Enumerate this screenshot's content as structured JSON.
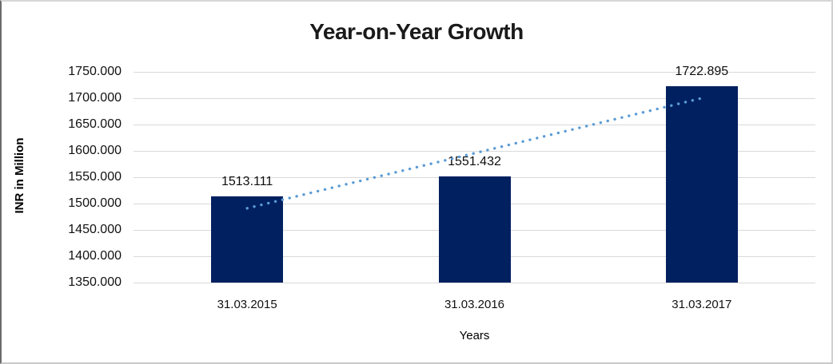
{
  "chart_data": {
    "type": "bar",
    "title": "Year-on-Year Growth",
    "xlabel": "Years",
    "ylabel": "INR in Million",
    "categories": [
      "31.03.2015",
      "31.03.2016",
      "31.03.2017"
    ],
    "values": [
      1513.111,
      1551.432,
      1722.895
    ],
    "value_labels": [
      "1513.111",
      "1551.432",
      "1722.895"
    ],
    "ylim": [
      1350,
      1750
    ],
    "ytick_step": 50,
    "ytick_labels": [
      "1750.000",
      "1700.000",
      "1650.000",
      "1600.000",
      "1550.000",
      "1500.000",
      "1450.000",
      "1400.000",
      "1350.000"
    ],
    "grid": true,
    "legend": "none",
    "bar_color": "#002060",
    "gridline_color": "#d9d9d9",
    "trendline": {
      "type": "linear",
      "style": "dotted",
      "color": "#5b9bd5",
      "start_value": 1491,
      "end_value": 1700
    }
  }
}
